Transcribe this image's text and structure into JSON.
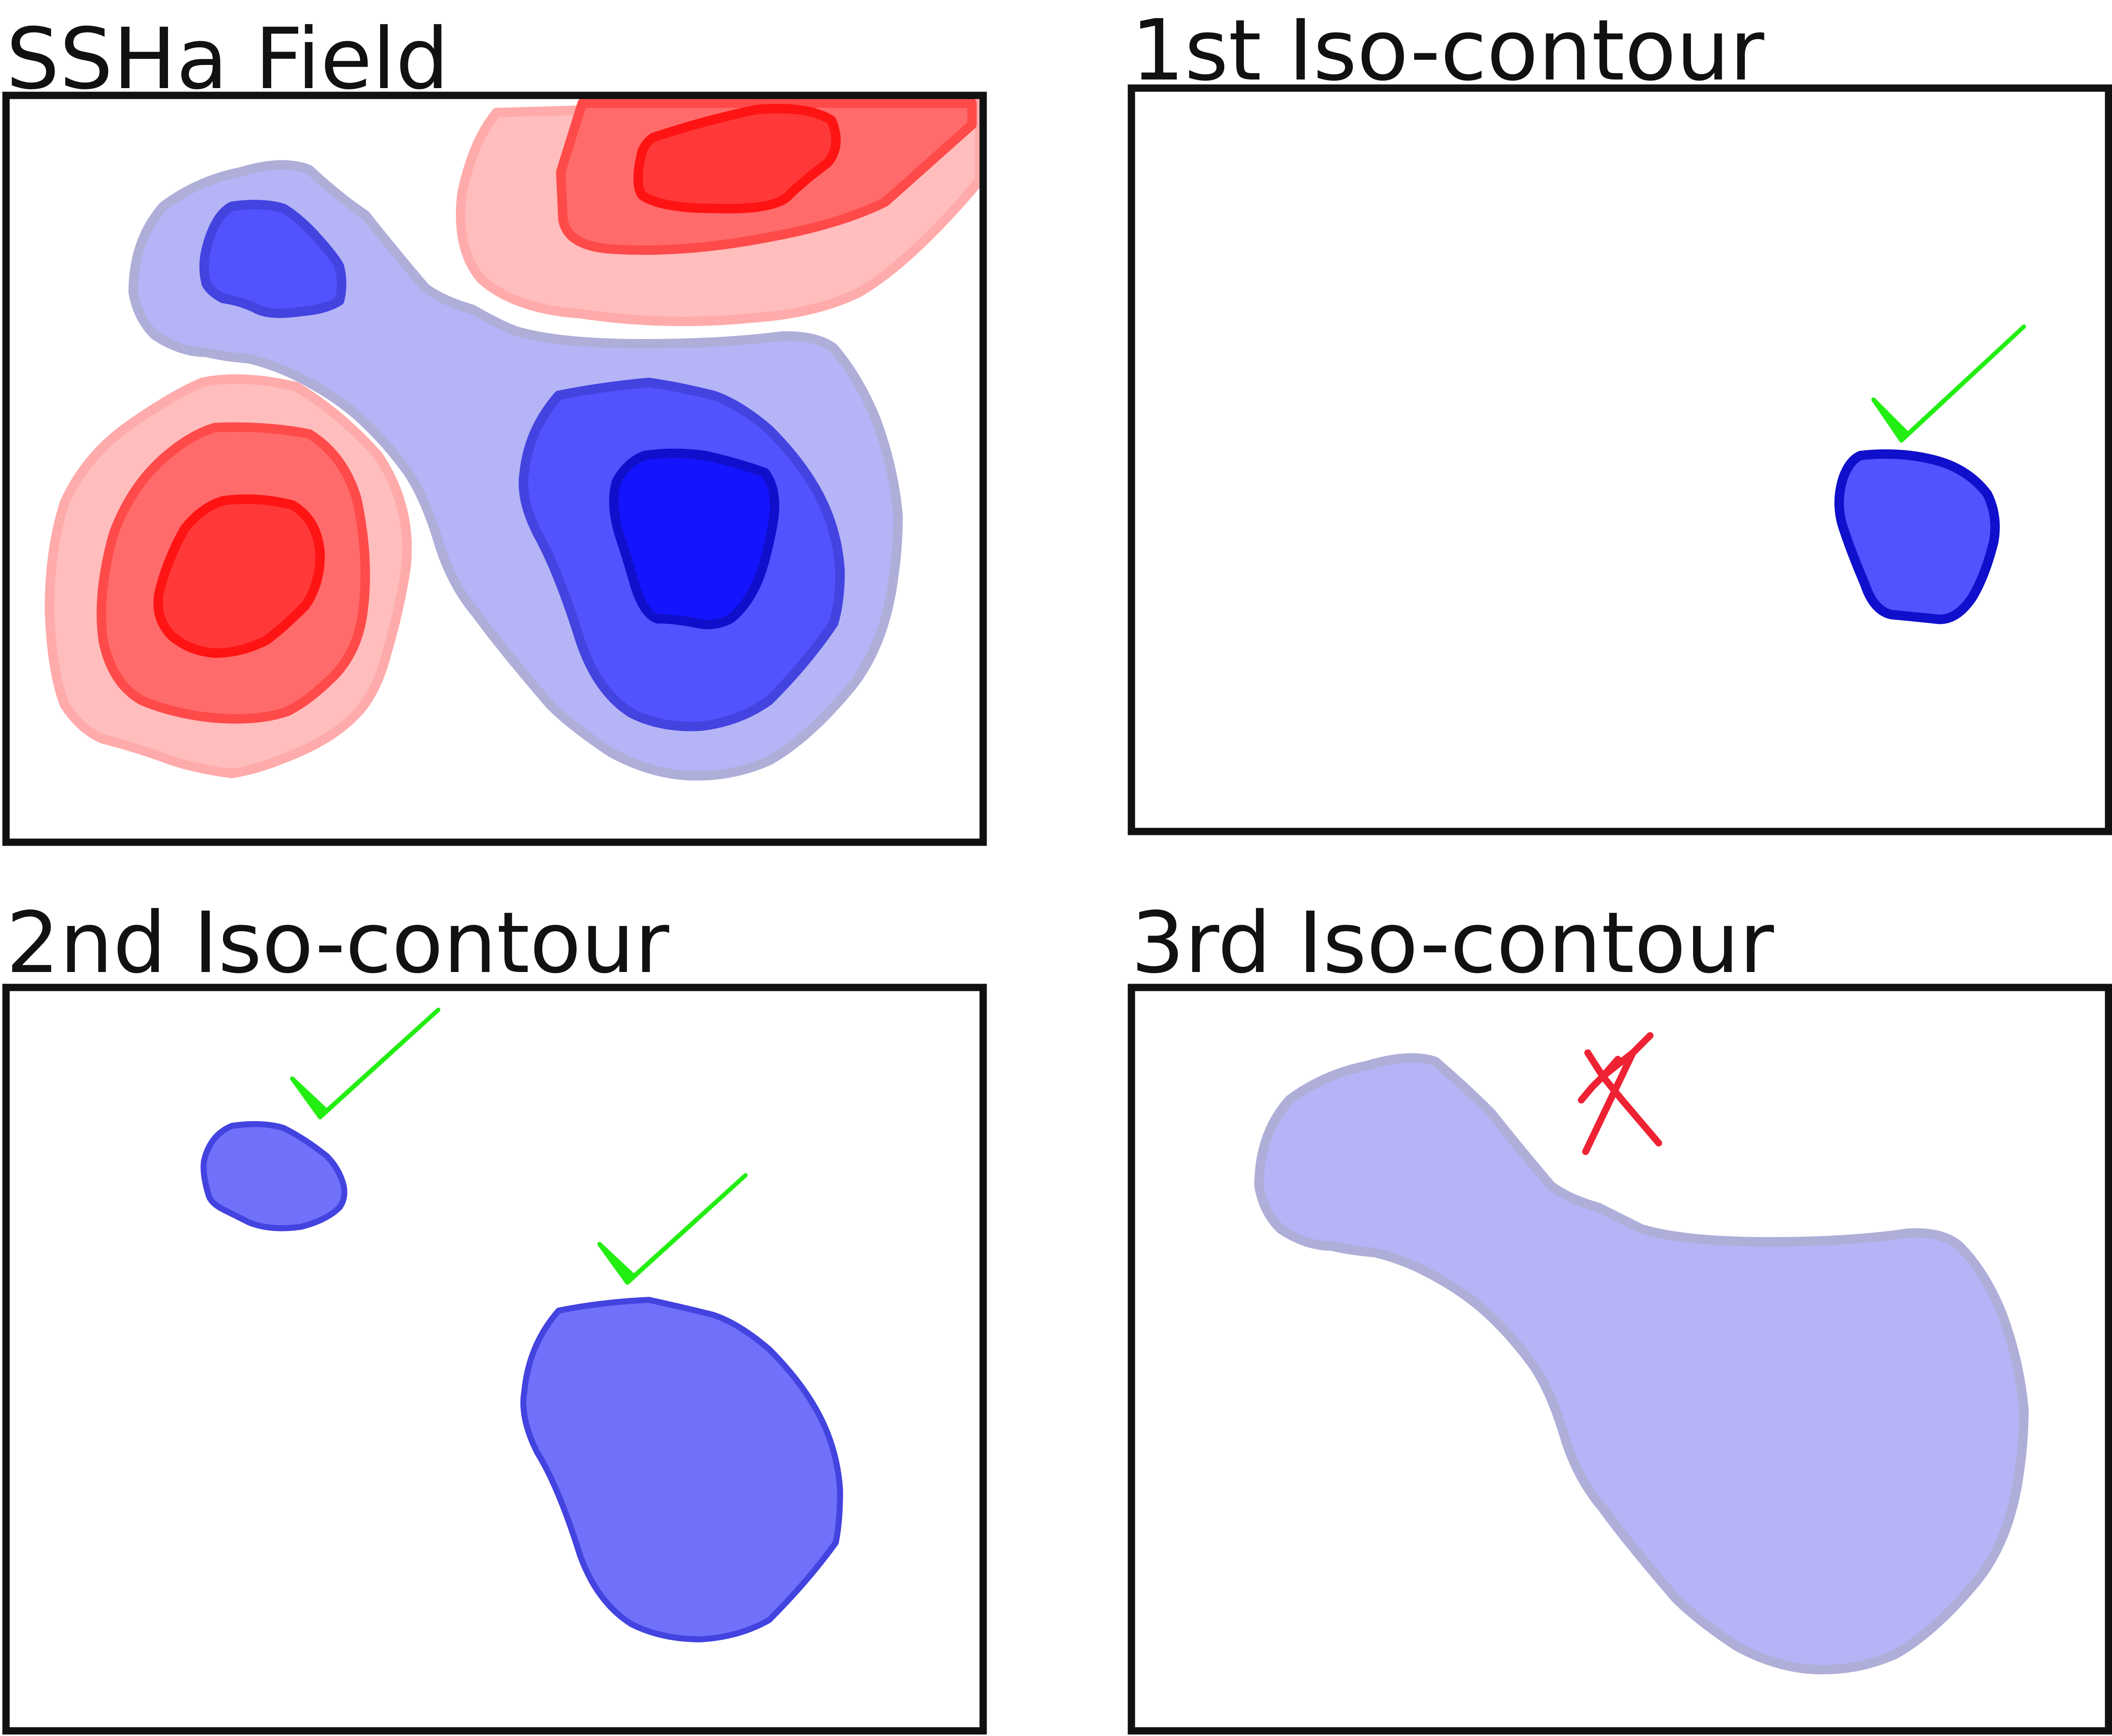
{
  "panels": [
    {
      "title": "SSHa Field"
    },
    {
      "title": "1st Iso-contour"
    },
    {
      "title": "2nd Iso-contour"
    },
    {
      "title": "3rd Iso-contour"
    }
  ],
  "colors": {
    "pos_light": "#ffbdbd",
    "pos_light_edge": "#ffabab",
    "pos_mid": "#ff6b6b",
    "pos_mid_edge": "#ff4a4a",
    "pos_dark": "#ff3939",
    "pos_dark_edge": "#ff1414",
    "neg_light": "#b4b4f7",
    "neg_light_edge": "#aeaed8",
    "neg_mid": "#5252ff",
    "neg_mid_edge": "#4343e0",
    "neg_mid2": "#7070fa",
    "neg_dark": "#1414ff",
    "neg_dark_edge": "#1010cc",
    "check": "#22ee11",
    "cross": "#ee2233",
    "frame": "#111111"
  },
  "icons": {
    "accepted": "check-icon",
    "rejected": "cross-icon"
  }
}
